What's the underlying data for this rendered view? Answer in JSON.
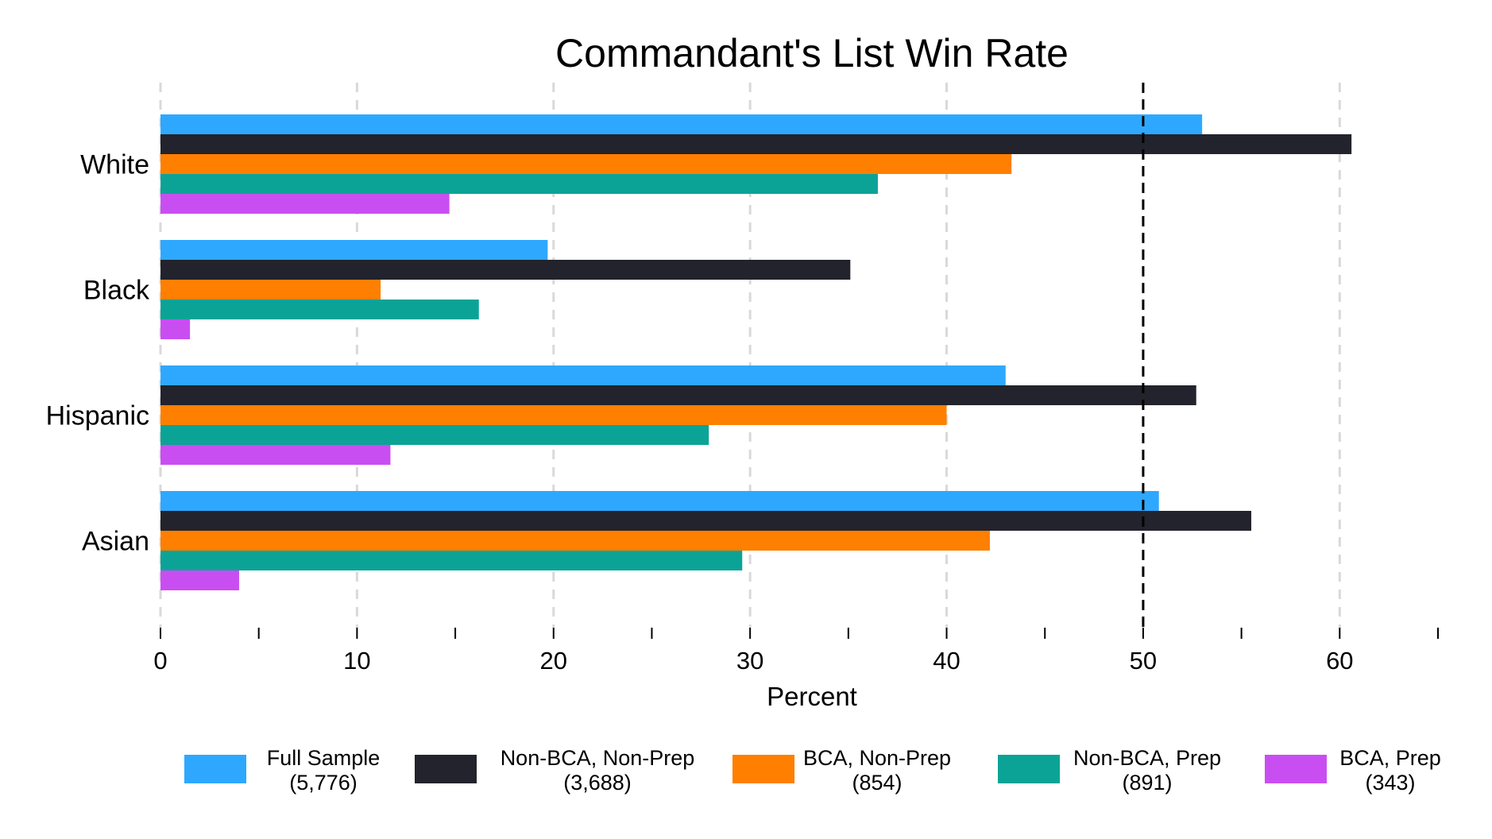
{
  "chart_data": {
    "type": "bar",
    "orientation": "horizontal",
    "title": "Commandant's List Win Rate",
    "xlabel": "Percent",
    "ylabel": "",
    "categories": [
      "White",
      "Black",
      "Hispanic",
      "Asian"
    ],
    "xlim": [
      0,
      65
    ],
    "x_ticks": [
      0,
      10,
      20,
      30,
      40,
      50,
      60
    ],
    "x_minor_ticks": [
      5,
      15,
      25,
      35,
      45,
      55,
      65
    ],
    "reference_line": 50,
    "grid": true,
    "legend_position": "bottom",
    "series": [
      {
        "name": "Full Sample",
        "count": "(5,776)",
        "color": "#2ea8ff",
        "values": [
          53.0,
          19.7,
          43.0,
          50.8
        ]
      },
      {
        "name": "Non-BCA, Non-Prep",
        "count": "(3,688)",
        "color": "#22232c",
        "values": [
          60.6,
          35.1,
          52.7,
          55.5
        ]
      },
      {
        "name": "BCA, Non-Prep",
        "count": "(854)",
        "color": "#ff7f00",
        "values": [
          43.3,
          11.2,
          40.0,
          42.2
        ]
      },
      {
        "name": "Non-BCA, Prep",
        "count": "(891)",
        "color": "#0ca397",
        "values": [
          36.5,
          16.2,
          27.9,
          29.6
        ]
      },
      {
        "name": "BCA, Prep",
        "count": "(343)",
        "color": "#c94ef2",
        "values": [
          14.7,
          1.5,
          11.7,
          4.0
        ]
      }
    ]
  }
}
